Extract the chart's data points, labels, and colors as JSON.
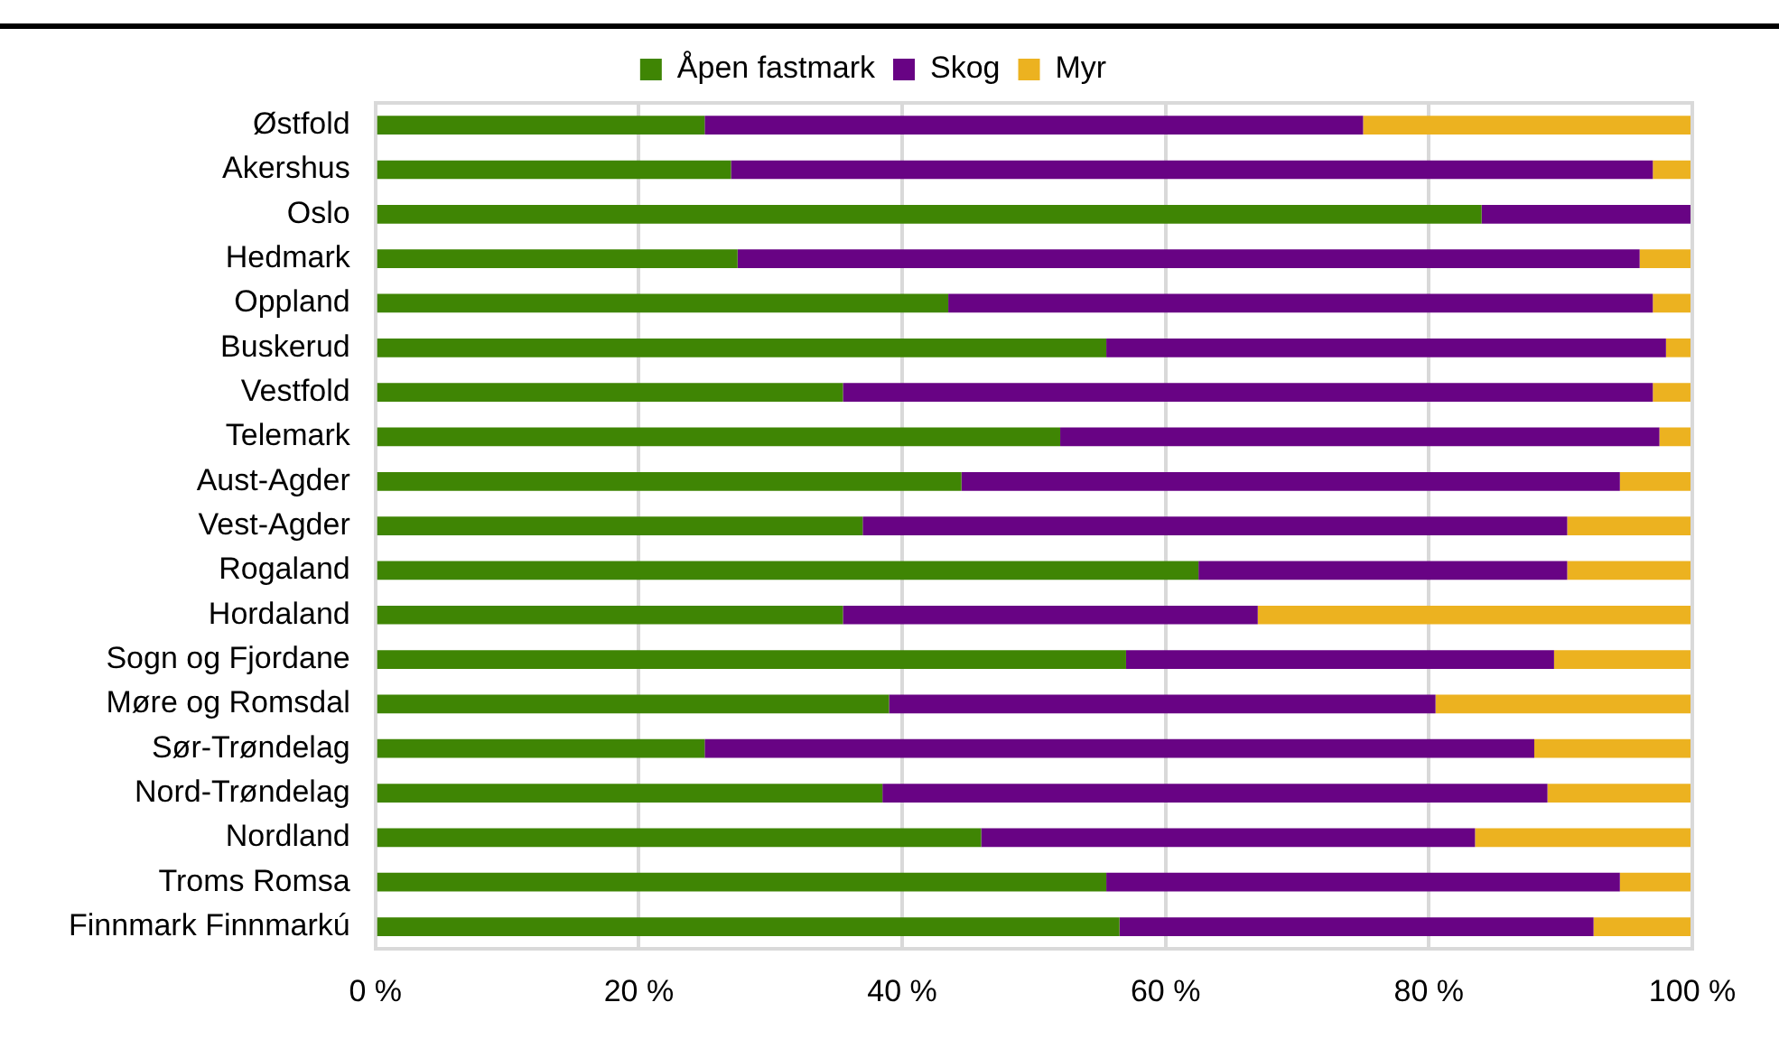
{
  "chart_data": {
    "type": "bar",
    "orientation": "horizontal",
    "stacked": true,
    "categories": [
      "Østfold",
      "Akershus",
      "Oslo",
      "Hedmark",
      "Oppland",
      "Buskerud",
      "Vestfold",
      "Telemark",
      "Aust-Agder",
      "Vest-Agder",
      "Rogaland",
      "Hordaland",
      "Sogn og Fjordane",
      "Møre og Romsdal",
      "Sør-Trøndelag",
      "Nord-Trøndelag",
      "Nordland",
      "Troms Romsa",
      "Finnmark Finnmarkú"
    ],
    "series": [
      {
        "name": "Åpen fastmark",
        "color": "#3f8504",
        "values": [
          25,
          27,
          84,
          27.5,
          43.5,
          55.5,
          35.5,
          52,
          44.5,
          37,
          62.5,
          35.5,
          57,
          39,
          25,
          38.5,
          46,
          55.5,
          56.5
        ]
      },
      {
        "name": "Skog",
        "color": "#680384",
        "values": [
          50,
          70,
          16,
          68.5,
          53.5,
          42.5,
          61.5,
          45.5,
          50,
          53.5,
          28,
          31.5,
          32.5,
          41.5,
          63,
          50.5,
          37.5,
          39,
          36
        ]
      },
      {
        "name": "Myr",
        "color": "#ecb220",
        "values": [
          25,
          3,
          0,
          4,
          3,
          2,
          3,
          2.5,
          5.5,
          9.5,
          9.5,
          33,
          10.5,
          19.5,
          12,
          11,
          16.5,
          5.5,
          7.5
        ]
      }
    ],
    "xlim": [
      0,
      100
    ],
    "xticks": [
      {
        "value": 0,
        "label": "0 %"
      },
      {
        "value": 20,
        "label": "20 %"
      },
      {
        "value": 40,
        "label": "40 %"
      },
      {
        "value": 60,
        "label": "60 %"
      },
      {
        "value": 80,
        "label": "80 %"
      },
      {
        "value": 100,
        "label": "100 %"
      }
    ],
    "grid": "x",
    "legend": "top"
  }
}
